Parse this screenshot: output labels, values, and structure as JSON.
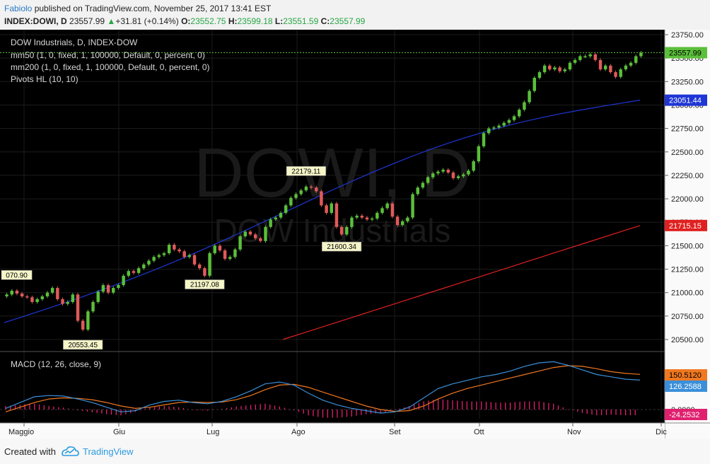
{
  "header": {
    "author": "Fabiolo",
    "published": "published on TradingView.com, November 25, 2017 13:41 EST",
    "symbol": "INDEX:DOWI, D",
    "last": "23557.99",
    "change": "+31.81 (+0.14%)",
    "o_label": "O:",
    "o": "23552.75",
    "h_label": "H:",
    "h": "23599.18",
    "l_label": "L:",
    "l": "23551.59",
    "c_label": "C:",
    "c": "23557.99"
  },
  "legend": {
    "title": "DOW Industrials, D, INDEX-DOW",
    "mm50": "mm50 (1, 0, fixed, 1, 100000, Default, 0, percent, 0)",
    "mm200": "mm200 (1, 0, fixed, 1, 100000, Default, 0, percent, 0)",
    "pivots": "Pivots HL (10, 10)",
    "macd": "MACD (12, 26, close, 9)"
  },
  "watermark": {
    "line1": "DOWI, D",
    "line2": "DOW Industrials"
  },
  "colors": {
    "up": "#5bbf3a",
    "down": "#e05a5a",
    "mm50": "#1e36d6",
    "mm200": "#e02020",
    "macd": "#3b8fd9",
    "signal": "#f07820",
    "hist": "#e0206e",
    "background": "#000000"
  },
  "footer": {
    "created": "Created with",
    "brand": "TradingView"
  },
  "chart_data": [
    {
      "type": "candlestick",
      "title": "DOW Industrials, D, INDEX-DOW",
      "x_labels": [
        "Maggio",
        "Giu",
        "Lug",
        "Ago",
        "Set",
        "Ott",
        "Nov",
        "Dic"
      ],
      "y_ticks": [
        20500,
        20750,
        21000,
        21250,
        21500,
        21750,
        22000,
        22250,
        22500,
        22750,
        23000,
        23250,
        23500,
        23750
      ],
      "y_tick_labels": [
        "20500.00",
        "20750.00",
        "21000.00",
        "21250.00",
        "21500.00",
        "21750.00",
        "22000.00",
        "22250.00",
        "22500.00",
        "22750.00",
        "23000.00",
        "23250.00",
        "23500.00",
        "23750.00"
      ],
      "ylim": [
        20400,
        23800
      ],
      "closes": [
        20980,
        21020,
        20990,
        20960,
        20950,
        20900,
        20930,
        20960,
        21000,
        21050,
        20930,
        20880,
        20900,
        20980,
        20700,
        20606,
        20800,
        20900,
        21010,
        21080,
        21000,
        21050,
        21080,
        21180,
        21230,
        21210,
        21260,
        21300,
        21340,
        21380,
        21400,
        21420,
        21510,
        21460,
        21440,
        21380,
        21400,
        21300,
        21260,
        21180,
        21420,
        21500,
        21450,
        21360,
        21380,
        21460,
        21600,
        21650,
        21620,
        21580,
        21550,
        21700,
        21780,
        21800,
        21850,
        21930,
        22010,
        22050,
        22090,
        22130,
        22120,
        22080,
        21930,
        21850,
        21950,
        21700,
        21620,
        21700,
        21800,
        21820,
        21800,
        21780,
        21790,
        21850,
        21900,
        21950,
        21810,
        21720,
        21760,
        21800,
        22050,
        22120,
        22170,
        22230,
        22270,
        22290,
        22310,
        22280,
        22220,
        22240,
        22260,
        22300,
        22400,
        22560,
        22700,
        22750,
        22760,
        22780,
        22810,
        22840,
        22880,
        22950,
        23030,
        23150,
        23290,
        23350,
        23420,
        23380,
        23400,
        23360,
        23380,
        23450,
        23480,
        23520,
        23520,
        23540,
        23480,
        23380,
        23420,
        23350,
        23300,
        23380,
        23420,
        23450,
        23520,
        23557.99
      ],
      "labeled_points": [
        {
          "label": "070.90",
          "value": 21070.9
        },
        {
          "label": "20553.45",
          "value": 20553.45
        },
        {
          "label": "21197.08",
          "value": 21197.08
        },
        {
          "label": "22179.11",
          "value": 22179.11
        },
        {
          "label": "21600.34",
          "value": 21600.34
        }
      ],
      "series": [
        {
          "name": "mm50",
          "start": 20680,
          "end": 23051.44,
          "last_label": "23051.44"
        },
        {
          "name": "mm200",
          "start": 20500,
          "end": 21715.15,
          "last_label": "21715.15"
        }
      ],
      "last_price_label": "23557.99"
    },
    {
      "type": "line",
      "title": "MACD (12, 26, close, 9)",
      "y_tick_labels": [
        "0.0000"
      ],
      "series": [
        {
          "name": "MACD",
          "last_label": "126.2588",
          "values": [
            5,
            30,
            55,
            60,
            58,
            45,
            30,
            10,
            -10,
            -5,
            20,
            35,
            40,
            30,
            25,
            35,
            55,
            80,
            110,
            118,
            105,
            70,
            40,
            20,
            5,
            -5,
            -15,
            -10,
            10,
            50,
            90,
            110,
            125,
            140,
            150,
            165,
            185,
            200,
            205,
            190,
            170,
            150,
            140,
            130,
            126
          ]
        },
        {
          "name": "Signal",
          "last_label": "150.5120",
          "values": [
            -10,
            10,
            30,
            45,
            50,
            48,
            42,
            30,
            15,
            5,
            10,
            20,
            30,
            32,
            30,
            32,
            42,
            60,
            85,
            105,
            108,
            95,
            75,
            55,
            35,
            15,
            0,
            -8,
            -5,
            15,
            45,
            70,
            90,
            105,
            120,
            135,
            150,
            165,
            180,
            188,
            185,
            175,
            162,
            155,
            150.5
          ]
        },
        {
          "name": "Histogram",
          "last_label": "-24.2532",
          "values": [
            15,
            20,
            25,
            15,
            8,
            -3,
            -12,
            -20,
            -25,
            -10,
            10,
            15,
            10,
            -2,
            -5,
            3,
            13,
            20,
            25,
            13,
            -3,
            -25,
            -35,
            -35,
            -30,
            -20,
            -15,
            -2,
            15,
            35,
            45,
            40,
            35,
            35,
            30,
            30,
            35,
            35,
            25,
            2,
            -15,
            -25,
            -22,
            -25,
            -24.25
          ]
        }
      ]
    }
  ]
}
